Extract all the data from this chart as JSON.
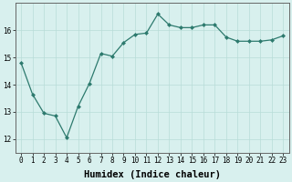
{
  "x": [
    0,
    1,
    2,
    3,
    4,
    5,
    6,
    7,
    8,
    9,
    10,
    11,
    12,
    13,
    14,
    15,
    16,
    17,
    18,
    19,
    20,
    21,
    22,
    23
  ],
  "y": [
    14.8,
    13.65,
    12.95,
    12.85,
    12.05,
    13.2,
    14.05,
    15.15,
    15.05,
    15.55,
    15.85,
    15.9,
    16.6,
    16.2,
    16.1,
    16.1,
    16.2,
    16.2,
    15.75,
    15.6,
    15.6,
    15.6,
    15.65,
    15.8
  ],
  "xlabel": "Humidex (Indice chaleur)",
  "ylim": [
    11.5,
    17.0
  ],
  "xlim": [
    -0.5,
    23.5
  ],
  "yticks": [
    12,
    13,
    14,
    15,
    16
  ],
  "xticks": [
    0,
    1,
    2,
    3,
    4,
    5,
    6,
    7,
    8,
    9,
    10,
    11,
    12,
    13,
    14,
    15,
    16,
    17,
    18,
    19,
    20,
    21,
    22,
    23
  ],
  "line_color": "#2d7a6e",
  "marker_color": "#2d7a6e",
  "bg_color": "#d8f0ee",
  "grid_color": "#b8dcd8",
  "tick_fontsize": 5.5,
  "label_fontsize": 7.5
}
